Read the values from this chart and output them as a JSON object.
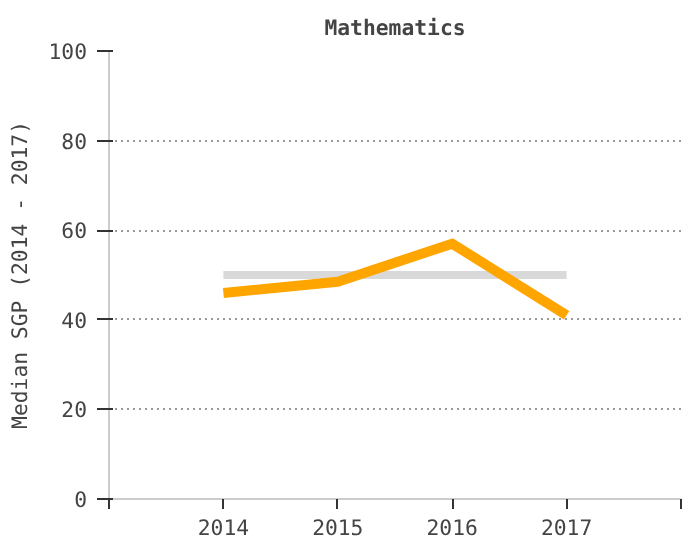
{
  "chart_data": {
    "type": "line",
    "title": "Mathematics",
    "ylabel": "Median SGP (2014 - 2017)",
    "x": [
      2014,
      2015,
      2016,
      2017
    ],
    "series": [
      {
        "color": "#d9d9d9",
        "values": [
          50,
          50,
          50,
          50
        ]
      },
      {
        "color": "#ffa500",
        "values": [
          46,
          48.5,
          57,
          41
        ]
      }
    ],
    "xlim": [
      2013,
      2018
    ],
    "xticks": [
      {
        "value": 2013,
        "label": null
      },
      2014,
      2015,
      2016,
      2017,
      {
        "value": 2018,
        "label": null
      }
    ],
    "ylim": [
      0,
      100
    ],
    "yticks": [
      0,
      20,
      40,
      60,
      80,
      100
    ],
    "grid": "y",
    "line_style": "solid",
    "marker": "none"
  }
}
